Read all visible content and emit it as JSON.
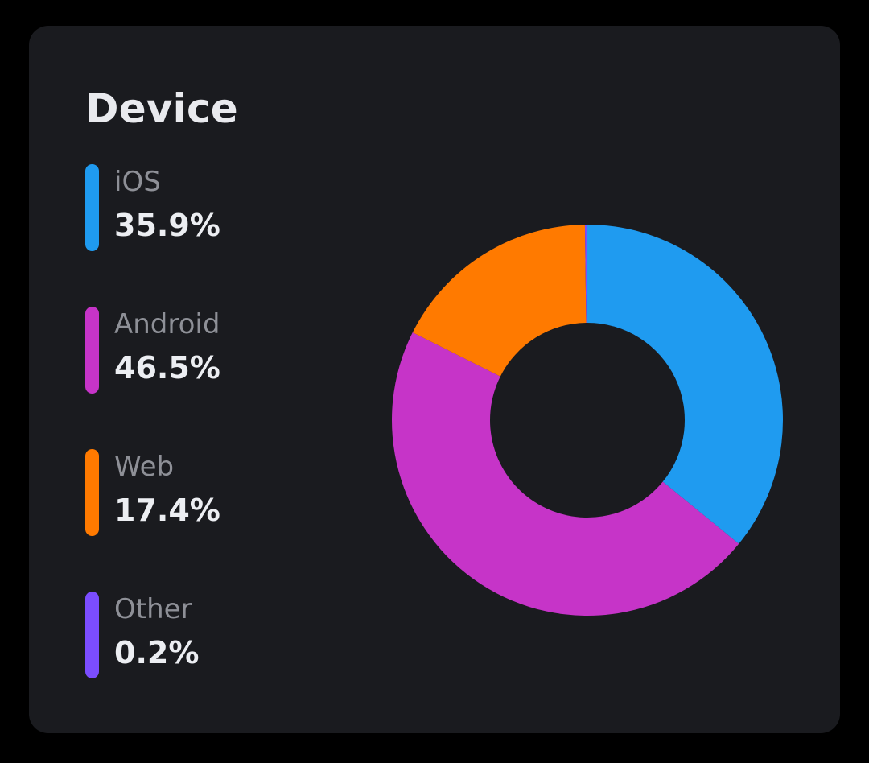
{
  "card": {
    "title": "Device"
  },
  "chart_data": {
    "type": "pie",
    "variant": "donut",
    "title": "Device",
    "categories": [
      "iOS",
      "Android",
      "Web",
      "Other"
    ],
    "values": [
      35.9,
      46.5,
      17.4,
      0.2
    ],
    "value_labels": [
      "35.9%",
      "46.5%",
      "17.4%",
      "0.2%"
    ],
    "unit": "%",
    "colors": [
      "#1f9bf0",
      "#c634c8",
      "#ff7a00",
      "#7b4dff"
    ],
    "legend_placement": "left"
  }
}
